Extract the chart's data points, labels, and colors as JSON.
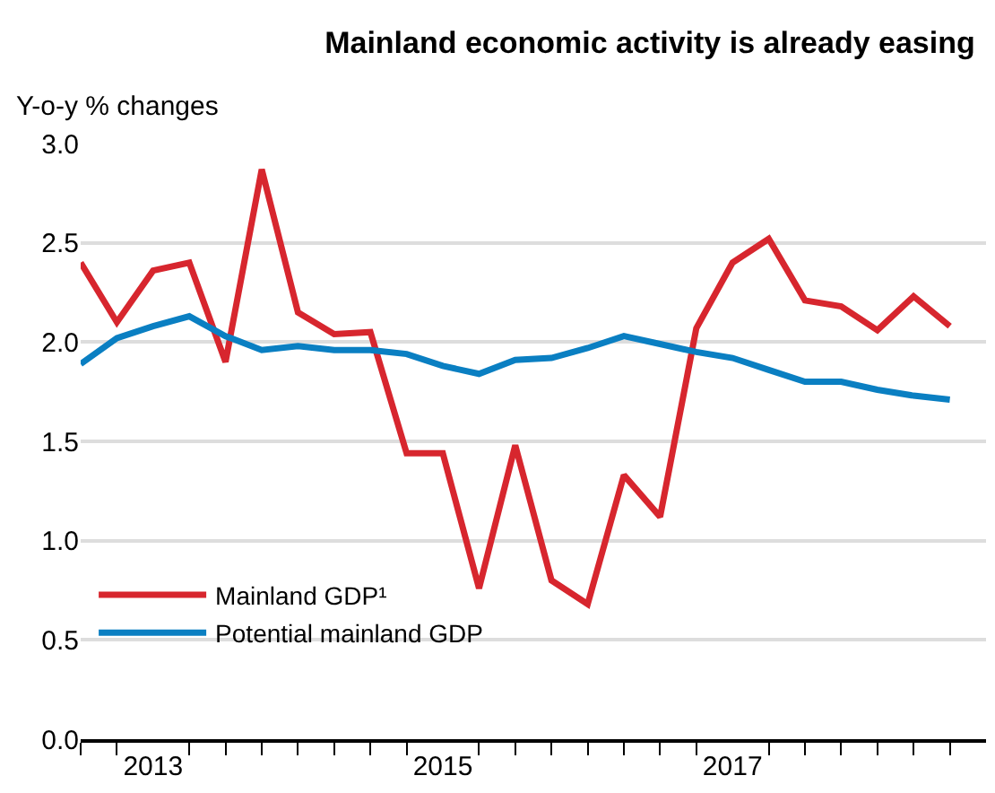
{
  "chart_data": {
    "type": "line",
    "title": "Mainland economic activity is already easing",
    "ylabel": "Y-o-y % changes",
    "x": [
      2013.0,
      2013.25,
      2013.5,
      2013.75,
      2014.0,
      2014.25,
      2014.5,
      2014.75,
      2015.0,
      2015.25,
      2015.5,
      2015.75,
      2016.0,
      2016.25,
      2016.5,
      2016.75,
      2017.0,
      2017.25,
      2017.5,
      2017.75,
      2018.0,
      2018.25,
      2018.5,
      2018.75,
      2019.0
    ],
    "series": [
      {
        "name": "Mainland GDP¹",
        "color": "#d7262e",
        "values": [
          2.4,
          2.1,
          2.36,
          2.4,
          1.9,
          2.87,
          2.15,
          2.04,
          2.05,
          1.44,
          1.44,
          0.76,
          1.48,
          0.8,
          0.68,
          1.33,
          1.12,
          2.07,
          2.4,
          2.52,
          2.21,
          2.18,
          2.06,
          2.23,
          2.08
        ]
      },
      {
        "name": "Potential mainland GDP",
        "color": "#0a7fc2",
        "values": [
          1.89,
          2.02,
          2.08,
          2.13,
          2.03,
          1.96,
          1.98,
          1.96,
          1.96,
          1.94,
          1.88,
          1.84,
          1.91,
          1.92,
          1.97,
          2.03,
          1.99,
          1.95,
          1.92,
          1.86,
          1.8,
          1.8,
          1.76,
          1.73,
          1.71
        ]
      }
    ],
    "xlim": [
      2013.0,
      2019.25
    ],
    "xticks": [
      {
        "value": 2013.5,
        "label": "2013"
      },
      {
        "value": 2015.5,
        "label": "2015"
      },
      {
        "value": 2017.5,
        "label": "2017"
      },
      {
        "value": 2013.0,
        "label": null
      },
      {
        "value": 2013.25,
        "label": null
      },
      {
        "value": 2013.75,
        "label": null
      },
      {
        "value": 2014.0,
        "label": null
      },
      {
        "value": 2014.25,
        "label": null
      },
      {
        "value": 2014.5,
        "label": null
      },
      {
        "value": 2014.75,
        "label": null
      },
      {
        "value": 2015.0,
        "label": null
      },
      {
        "value": 2015.25,
        "label": null
      },
      {
        "value": 2015.75,
        "label": null
      },
      {
        "value": 2016.0,
        "label": null
      },
      {
        "value": 2016.25,
        "label": null
      },
      {
        "value": 2016.5,
        "label": null
      },
      {
        "value": 2016.75,
        "label": null
      },
      {
        "value": 2017.0,
        "label": null
      },
      {
        "value": 2017.25,
        "label": null
      },
      {
        "value": 2017.75,
        "label": null
      },
      {
        "value": 2018.0,
        "label": null
      },
      {
        "value": 2018.25,
        "label": null
      },
      {
        "value": 2018.5,
        "label": null
      },
      {
        "value": 2018.75,
        "label": null
      },
      {
        "value": 2019.0,
        "label": null
      }
    ],
    "ylim": [
      0,
      3.0
    ],
    "yticks": [
      {
        "value": 0,
        "label": "0.0"
      },
      {
        "value": 0.5,
        "label": "0.5"
      },
      {
        "value": 1.0,
        "label": "1.0"
      },
      {
        "value": 1.5,
        "label": "1.5"
      },
      {
        "value": 2.0,
        "label": "2.0"
      },
      {
        "value": 2.5,
        "label": "2.5"
      },
      {
        "value": 3.0,
        "label": "3.0"
      }
    ],
    "grid": "y",
    "legend": "bottom left",
    "marker": "none",
    "line_style": "solid"
  }
}
